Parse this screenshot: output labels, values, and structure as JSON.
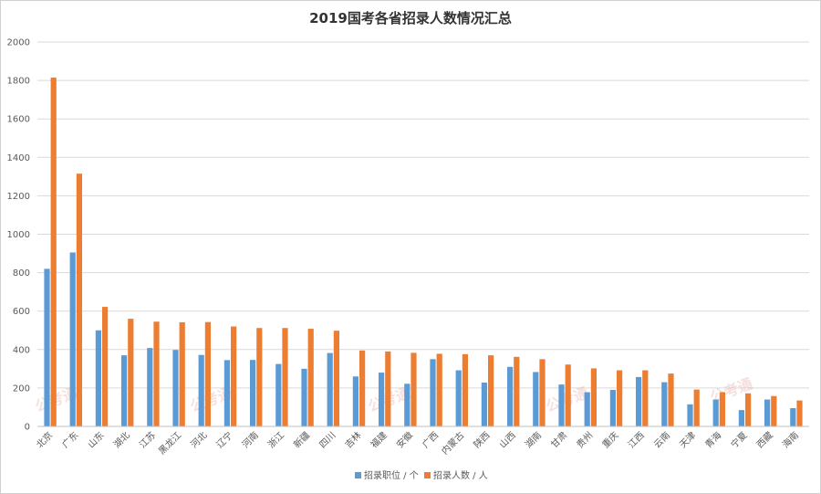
{
  "chart_data": {
    "type": "bar",
    "title": "2019国考各省招录人数情况汇总",
    "xlabel": "",
    "ylabel": "",
    "ylim": [
      0,
      2000
    ],
    "yticks": [
      0,
      200,
      400,
      600,
      800,
      1000,
      1200,
      1400,
      1600,
      1800,
      2000
    ],
    "grid": true,
    "legend_position": "bottom",
    "categories": [
      "北京",
      "广东",
      "山东",
      "湖北",
      "江苏",
      "黑龙江",
      "河北",
      "辽宁",
      "河南",
      "浙江",
      "新疆",
      "四川",
      "吉林",
      "福建",
      "安徽",
      "广西",
      "内蒙古",
      "陕西",
      "山西",
      "湖南",
      "甘肃",
      "贵州",
      "重庆",
      "江西",
      "云南",
      "天津",
      "青海",
      "宁夏",
      "西藏",
      "海南"
    ],
    "series": [
      {
        "name": "招录职位 / 个",
        "color": "#5b9bd5",
        "values": [
          820,
          905,
          500,
          370,
          408,
          398,
          372,
          345,
          346,
          325,
          300,
          382,
          260,
          280,
          222,
          350,
          292,
          228,
          310,
          283,
          218,
          178,
          190,
          257,
          230,
          115,
          140,
          85,
          140,
          95
        ]
      },
      {
        "name": "招录人数 / 人",
        "color": "#ed7d31",
        "values": [
          1815,
          1315,
          622,
          560,
          545,
          542,
          543,
          520,
          512,
          512,
          508,
          498,
          395,
          390,
          383,
          378,
          376,
          370,
          362,
          350,
          322,
          302,
          292,
          292,
          275,
          192,
          178,
          172,
          158,
          135
        ]
      }
    ]
  },
  "watermark": "公考通"
}
